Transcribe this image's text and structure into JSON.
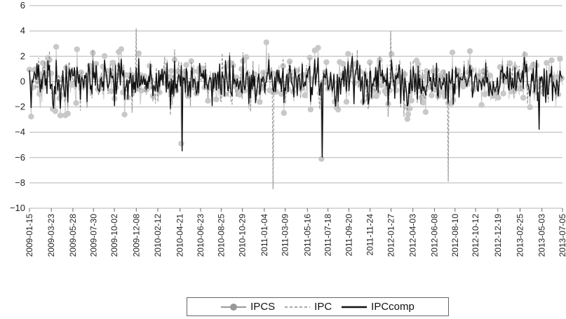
{
  "chart_data": {
    "type": "line",
    "title": "",
    "xlabel": "",
    "ylabel": "",
    "ylim": [
      -10,
      6
    ],
    "yticks": [
      -10,
      -8,
      -6,
      -4,
      -2,
      0,
      2,
      4,
      6
    ],
    "grid": "horizontal",
    "legend_position": "bottom",
    "x_tick_labels": [
      "2009-01-15",
      "2009-03-23",
      "2009-05-28",
      "2009-07-30",
      "2009-10-02",
      "2009-12-08",
      "2010-02-12",
      "2010-04-21",
      "2010-06-23",
      "2010-08-25",
      "2010-10-29",
      "2011-01-04",
      "2011-03-09",
      "2011-05-16",
      "2011-07-18",
      "2011-09-20",
      "2011-11-24",
      "2012-01-27",
      "2012-04-03",
      "2012-06-08",
      "2012-08-10",
      "2012-10-12",
      "2012-12-19",
      "2013-02-25",
      "2013-05-03",
      "2013-07-05"
    ],
    "x_range": [
      "2009-01-15",
      "2013-07-05"
    ],
    "series": [
      {
        "name": "IPCS",
        "color": "#c0c0c0",
        "style": "markers"
      },
      {
        "name": "IPC",
        "color": "#9a9a9a",
        "style": "dashed"
      },
      {
        "name": "IPCcomp",
        "color": "#111111",
        "style": "solid"
      }
    ],
    "notable_values": [
      {
        "series": "IPC",
        "x": "2009-12-08",
        "y": 4.2
      },
      {
        "series": "IPC",
        "x": "2012-01-27",
        "y": 4.0
      },
      {
        "series": "IPC",
        "x": "2011-02-01",
        "y": -8.5
      },
      {
        "series": "IPC",
        "x": "2012-07-20",
        "y": -7.9
      },
      {
        "series": "IPCcomp",
        "x": "2010-04-28",
        "y": -5.5
      },
      {
        "series": "IPCcomp",
        "x": "2011-06-30",
        "y": -6.0
      },
      {
        "series": "IPCS",
        "x": "2011-06-28",
        "y": -6.1
      },
      {
        "series": "IPCS",
        "x": "2010-04-25",
        "y": -4.9
      },
      {
        "series": "IPCS",
        "x": "2011-01-10",
        "y": 3.1
      },
      {
        "series": "IPCcomp",
        "x": "2013-04-25",
        "y": -3.8
      }
    ]
  },
  "legend": {
    "items": [
      {
        "label": "IPCS"
      },
      {
        "label": "IPC"
      },
      {
        "label": "IPCcomp"
      }
    ]
  }
}
